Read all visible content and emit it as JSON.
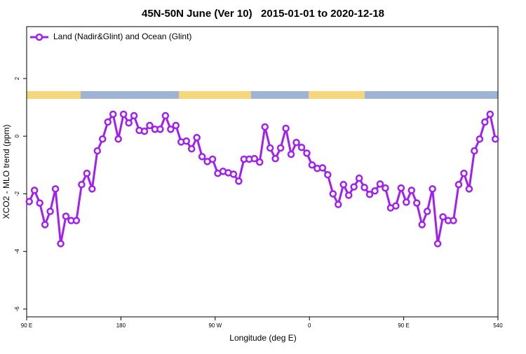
{
  "chart_data": {
    "type": "line",
    "title": "45N-50N June (Ver 10)   2015-01-01 to 2020-12-18",
    "x_label": "Longitude (deg E)",
    "y_label": "XCO2 - MLO trend (ppm)",
    "xlim": [
      90,
      540
    ],
    "ylim": [
      -6.27,
      3.8
    ],
    "xticks": [
      {
        "value": 90,
        "label": "90 E"
      },
      180,
      {
        "value": 270,
        "label": "90 W"
      },
      {
        "value": 360,
        "label": "0"
      },
      {
        "value": 450,
        "label": "90 E"
      },
      540
    ],
    "yticks": [
      -6,
      -4,
      -2,
      0,
      2
    ],
    "legend": "top-left",
    "x": [
      92.5,
      97.5,
      102.5,
      107.5,
      112.5,
      117.5,
      122.5,
      127.5,
      132.5,
      137.5,
      142.5,
      147.5,
      152.5,
      157.5,
      162.5,
      167.5,
      172.5,
      177.5,
      182.5,
      187.5,
      192.5,
      197.5,
      202.5,
      207.5,
      212.5,
      217.5,
      222.5,
      227.5,
      232.5,
      237.5,
      242.5,
      247.5,
      252.5,
      257.5,
      262.5,
      267.5,
      272.5,
      277.5,
      282.5,
      287.5,
      292.5,
      297.5,
      302.5,
      307.5,
      312.5,
      317.5,
      322.5,
      327.5,
      332.5,
      337.5,
      342.5,
      347.5,
      352.5,
      357.5,
      362.5,
      367.5,
      372.5,
      377.5,
      382.5,
      387.5,
      392.5,
      397.5,
      402.5,
      407.5,
      412.5,
      417.5,
      422.5,
      427.5,
      432.5,
      437.5,
      442.5,
      447.5,
      452.5,
      457.5,
      462.5,
      467.5,
      472.5,
      477.5,
      482.5,
      487.5,
      492.5,
      497.5,
      502.5,
      507.5,
      512.5,
      517.5,
      522.5,
      527.5,
      532.5,
      537.5
    ],
    "series": [
      {
        "name": "Land (Nadir&Glint) and Ocean (Glint)",
        "color": "#a020f0",
        "values": [
          -2.27,
          -1.88,
          -2.32,
          -3.07,
          -2.61,
          -1.83,
          -3.73,
          -2.78,
          -2.93,
          -2.93,
          -1.68,
          -1.29,
          -1.83,
          -0.51,
          -0.1,
          0.49,
          0.76,
          -0.1,
          0.76,
          0.46,
          0.71,
          0.2,
          0.17,
          0.37,
          0.24,
          0.24,
          0.71,
          0.24,
          0.37,
          -0.2,
          -0.17,
          -0.44,
          -0.05,
          -0.71,
          -0.88,
          -0.8,
          -1.29,
          -1.22,
          -1.27,
          -1.32,
          -1.56,
          -0.8,
          -0.8,
          -0.78,
          -0.9,
          0.32,
          -0.41,
          -0.78,
          -0.41,
          0.27,
          -0.63,
          -0.22,
          -0.39,
          -0.59,
          -1.0,
          -1.12,
          -1.1,
          -1.34,
          -2.0,
          -2.37,
          -1.68,
          -2.05,
          -1.76,
          -1.46,
          -1.78,
          -2.02,
          -1.9,
          -1.66,
          -1.8,
          -2.49,
          -2.42,
          -1.8,
          -2.29,
          -1.88,
          -2.32,
          -3.07,
          -2.61,
          -1.83,
          -3.73,
          -2.8,
          -2.93,
          -2.93,
          -1.68,
          -1.29,
          -1.83,
          -0.51,
          -0.1,
          0.49,
          0.76,
          -0.1
        ]
      }
    ]
  }
}
